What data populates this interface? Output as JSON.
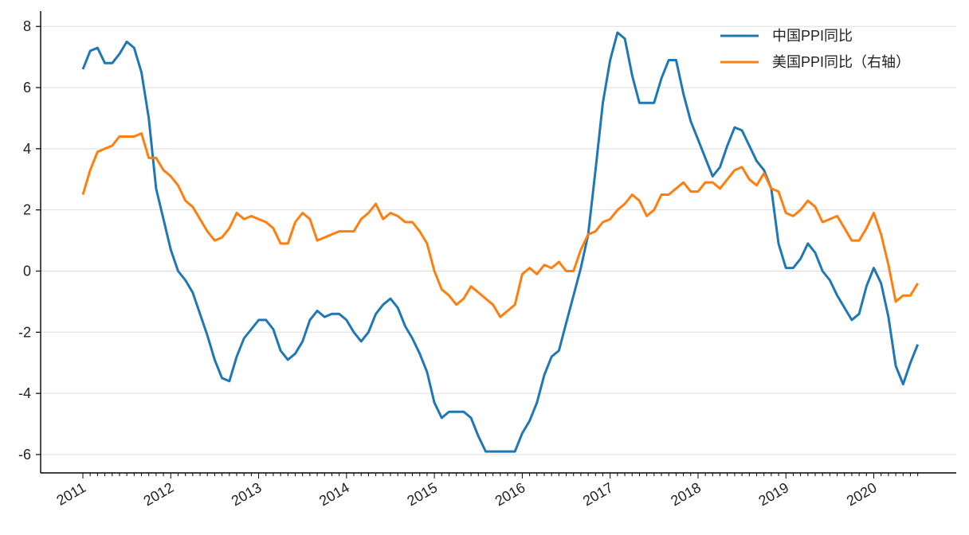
{
  "chart_data": {
    "type": "line",
    "title": "",
    "xlabel": "",
    "ylabel": "",
    "ylim": [
      -6.6,
      8.5
    ],
    "yticks": [
      8,
      6,
      4,
      2,
      0,
      -2,
      -4,
      -6
    ],
    "x_tick_labels": [
      "2011",
      "2012",
      "2013",
      "2014",
      "2015",
      "2016",
      "2017",
      "2018",
      "2019",
      "2020"
    ],
    "x_range": [
      "2011-01",
      "2020-07"
    ],
    "grid": "horizontal",
    "legend_position": "top-right",
    "series": [
      {
        "name": "中国PPI同比",
        "color": "#1f77b4",
        "values": [
          6.6,
          7.2,
          7.3,
          6.8,
          6.8,
          7.1,
          7.5,
          7.3,
          6.5,
          5.0,
          2.7,
          1.7,
          0.7,
          0.0,
          -0.3,
          -0.7,
          -1.4,
          -2.1,
          -2.9,
          -3.5,
          -3.6,
          -2.8,
          -2.2,
          -1.9,
          -1.6,
          -1.6,
          -1.9,
          -2.6,
          -2.9,
          -2.7,
          -2.3,
          -1.6,
          -1.3,
          -1.5,
          -1.4,
          -1.4,
          -1.6,
          -2.0,
          -2.3,
          -2.0,
          -1.4,
          -1.1,
          -0.9,
          -1.2,
          -1.8,
          -2.2,
          -2.7,
          -3.3,
          -4.3,
          -4.8,
          -4.6,
          -4.6,
          -4.6,
          -4.8,
          -5.4,
          -5.9,
          -5.9,
          -5.9,
          -5.9,
          -5.9,
          -5.3,
          -4.9,
          -4.3,
          -3.4,
          -2.8,
          -2.6,
          -1.7,
          -0.8,
          0.1,
          1.2,
          3.3,
          5.5,
          6.9,
          7.8,
          7.6,
          6.4,
          5.5,
          5.5,
          5.5,
          6.3,
          6.9,
          6.9,
          5.8,
          4.9,
          4.3,
          3.7,
          3.1,
          3.4,
          4.1,
          4.7,
          4.6,
          4.1,
          3.6,
          3.3,
          2.7,
          0.9,
          0.1,
          0.1,
          0.4,
          0.9,
          0.6,
          0.0,
          -0.3,
          -0.8,
          -1.2,
          -1.6,
          -1.4,
          -0.5,
          0.1,
          -0.4,
          -1.5,
          -3.1,
          -3.7,
          -3.0,
          -2.4
        ]
      },
      {
        "name": "美国PPI同比（右轴）",
        "color": "#ff7f0e",
        "values": [
          2.5,
          3.3,
          3.9,
          4.0,
          4.1,
          4.4,
          4.4,
          4.4,
          4.5,
          3.7,
          3.7,
          3.3,
          3.1,
          2.8,
          2.3,
          2.1,
          1.7,
          1.3,
          1.0,
          1.1,
          1.4,
          1.9,
          1.7,
          1.8,
          1.7,
          1.6,
          1.4,
          0.9,
          0.9,
          1.6,
          1.9,
          1.7,
          1.0,
          1.1,
          1.2,
          1.3,
          1.3,
          1.3,
          1.7,
          1.9,
          2.2,
          1.7,
          1.9,
          1.8,
          1.6,
          1.6,
          1.3,
          0.9,
          0.0,
          -0.6,
          -0.8,
          -1.1,
          -0.9,
          -0.5,
          -0.7,
          -0.9,
          -1.1,
          -1.5,
          -1.3,
          -1.1,
          -0.1,
          0.1,
          -0.1,
          0.2,
          0.1,
          0.3,
          0.0,
          0.0,
          0.7,
          1.2,
          1.3,
          1.6,
          1.7,
          2.0,
          2.2,
          2.5,
          2.3,
          1.8,
          2.0,
          2.5,
          2.5,
          2.7,
          2.9,
          2.6,
          2.6,
          2.9,
          2.9,
          2.7,
          3.0,
          3.3,
          3.4,
          3.0,
          2.8,
          3.2,
          2.7,
          2.6,
          1.9,
          1.8,
          2.0,
          2.3,
          2.1,
          1.6,
          1.7,
          1.8,
          1.4,
          1.0,
          1.0,
          1.4,
          1.9,
          1.2,
          0.2,
          -1.0,
          -0.8,
          -0.8,
          -0.4
        ]
      }
    ]
  }
}
